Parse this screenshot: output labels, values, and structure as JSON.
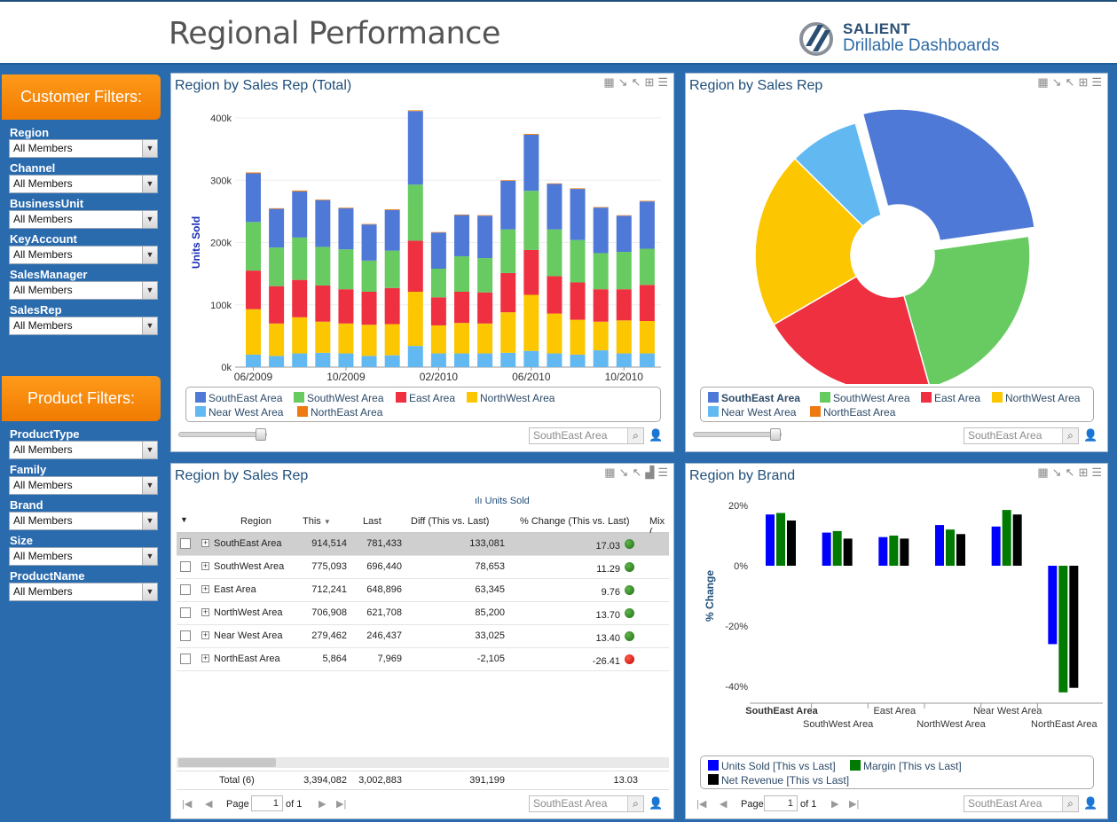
{
  "header": {
    "title": "Regional Performance",
    "brand_line1": "SALIENT",
    "brand_line2": "Drillable Dashboards"
  },
  "customer_filters": {
    "title": "Customer Filters:",
    "fields": [
      {
        "label": "Region",
        "value": "All Members"
      },
      {
        "label": "Channel",
        "value": "All Members"
      },
      {
        "label": "BusinessUnit",
        "value": "All Members"
      },
      {
        "label": "KeyAccount",
        "value": "All Members"
      },
      {
        "label": "SalesManager",
        "value": "All Members"
      },
      {
        "label": "SalesRep",
        "value": "All Members"
      }
    ]
  },
  "product_filters": {
    "title": "Product Filters:",
    "fields": [
      {
        "label": "ProductType",
        "value": "All Members"
      },
      {
        "label": "Family",
        "value": "All Members"
      },
      {
        "label": "Brand",
        "value": "All Members"
      },
      {
        "label": "Size",
        "value": "All Members"
      },
      {
        "label": "ProductName",
        "value": "All Members"
      }
    ]
  },
  "colors": {
    "southeast": "#4f79d6",
    "southwest": "#67cb62",
    "east": "#ee3040",
    "northwest": "#fcc600",
    "nearwest": "#62b9f2",
    "northeast": "#ee7b12"
  },
  "panel1": {
    "title": "Region by Sales Rep (Total)",
    "search_placeholder": "SouthEast Area"
  },
  "panel2": {
    "title": "Region by Sales Rep",
    "search_placeholder": "SouthEast Area"
  },
  "panel3": {
    "title": "Region by Sales Rep",
    "measure_label": "Units Sold",
    "columns": [
      "Region",
      "This",
      "Last",
      "Diff (This vs. Last)",
      "% Change (This vs. Last)",
      "Mix ("
    ],
    "rows": [
      {
        "region": "SouthEast Area",
        "this": "914,514",
        "last": "781,433",
        "diff": "133,081",
        "pct": "17.03",
        "status": "green"
      },
      {
        "region": "SouthWest Area",
        "this": "775,093",
        "last": "696,440",
        "diff": "78,653",
        "pct": "11.29",
        "status": "green"
      },
      {
        "region": "East Area",
        "this": "712,241",
        "last": "648,896",
        "diff": "63,345",
        "pct": "9.76",
        "status": "green"
      },
      {
        "region": "NorthWest Area",
        "this": "706,908",
        "last": "621,708",
        "diff": "85,200",
        "pct": "13.70",
        "status": "green"
      },
      {
        "region": "Near West Area",
        "this": "279,462",
        "last": "246,437",
        "diff": "33,025",
        "pct": "13.40",
        "status": "green"
      },
      {
        "region": "NorthEast Area",
        "this": "5,864",
        "last": "7,969",
        "diff": "-2,105",
        "pct": "-26.41",
        "status": "red"
      }
    ],
    "total": {
      "label": "Total (6)",
      "this": "3,394,082",
      "last": "3,002,883",
      "diff": "391,199",
      "pct": "13.03"
    },
    "pager": {
      "page_label": "Page",
      "page": "1",
      "of_label": "of 1"
    },
    "search_placeholder": "SouthEast Area"
  },
  "panel4": {
    "title": "Region by Brand",
    "search_placeholder": "SouthEast Area",
    "pager": {
      "page_label": "Page",
      "page": "1",
      "of_label": "of 1"
    }
  },
  "chart_data": [
    {
      "type": "bar",
      "stacked": true,
      "title": "Region by Sales Rep (Total)",
      "ylabel": "Units Sold",
      "ylim": [
        0,
        400000
      ],
      "yticks": [
        "0k",
        "100k",
        "200k",
        "300k",
        "400k"
      ],
      "xtick_labels": [
        "06/2009",
        "10/2009",
        "02/2010",
        "06/2010",
        "10/2010"
      ],
      "series": [
        {
          "name": "Near West Area",
          "values": [
            20000,
            18000,
            22000,
            23000,
            22000,
            18000,
            19000,
            34000,
            22000,
            22000,
            22000,
            23000,
            26000,
            22000,
            20000,
            27000,
            22000,
            22000
          ]
        },
        {
          "name": "NorthWest Area",
          "values": [
            73000,
            52000,
            58000,
            50000,
            48000,
            50000,
            50000,
            87000,
            45000,
            49000,
            48000,
            65000,
            90000,
            64000,
            56000,
            46000,
            53000,
            52000
          ]
        },
        {
          "name": "East Area",
          "values": [
            62000,
            60000,
            60000,
            58000,
            55000,
            53000,
            58000,
            82000,
            45000,
            50000,
            50000,
            63000,
            72000,
            60000,
            60000,
            52000,
            50000,
            58000
          ]
        },
        {
          "name": "SouthWest Area",
          "values": [
            78000,
            62000,
            68000,
            62000,
            64000,
            50000,
            60000,
            90000,
            46000,
            57000,
            55000,
            70000,
            95000,
            75000,
            68000,
            58000,
            60000,
            58000
          ]
        },
        {
          "name": "SouthEast Area",
          "values": [
            78000,
            62000,
            74000,
            75000,
            66000,
            58000,
            65000,
            118000,
            58000,
            66000,
            68000,
            78000,
            90000,
            73000,
            82000,
            73000,
            58000,
            76000
          ]
        },
        {
          "name": "NorthEast Area",
          "values": [
            1500,
            1000,
            1500,
            1000,
            1000,
            800,
            1200,
            1200,
            800,
            1000,
            900,
            1000,
            1300,
            900,
            1000,
            900,
            800,
            900
          ]
        }
      ]
    },
    {
      "type": "pie",
      "title": "Region by Sales Rep",
      "labels": [
        "SouthEast Area",
        "SouthWest Area",
        "East Area",
        "NorthWest Area",
        "Near West Area",
        "NorthEast Area"
      ],
      "values": [
        914514,
        775093,
        712241,
        706908,
        279462,
        5864
      ]
    },
    {
      "type": "bar",
      "title": "Region by Brand",
      "ylabel": "% Change",
      "ylim": [
        -45,
        22
      ],
      "yticks": [
        "20%",
        "0%",
        "-20%",
        "-40%"
      ],
      "categories": [
        "SouthEast Area",
        "SouthWest Area",
        "East Area",
        "NorthWest Area",
        "Near West Area",
        "NorthEast Area"
      ],
      "series": [
        {
          "name": "Units Sold [This vs Last]",
          "values": [
            17,
            11,
            9.5,
            13.5,
            13,
            -26
          ]
        },
        {
          "name": "Margin [This vs Last]",
          "values": [
            17.5,
            11.5,
            10,
            12,
            18.5,
            -42
          ]
        },
        {
          "name": "Net Revenue [This vs Last]",
          "values": [
            15,
            9,
            9,
            10.5,
            17,
            -40.5
          ]
        }
      ]
    }
  ]
}
